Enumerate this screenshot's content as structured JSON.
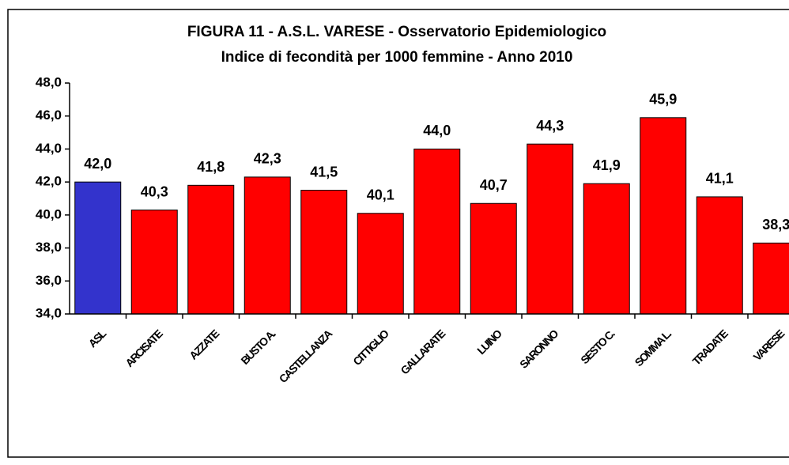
{
  "chart_data": {
    "type": "bar",
    "title": "FIGURA 11 - A.S.L. VARESE - Osservatorio Epidemiologico",
    "subtitle": "Indice di fecondità per 1000 femmine - Anno 2010",
    "categories": [
      "ASL",
      "ARCISATE",
      "AZZATE",
      "BUSTO A.",
      "CASTELLANZA",
      "CITTIGLIO",
      "GALLARATE",
      "LUINO",
      "SARONNO",
      "SESTO C.",
      "SOMMA L.",
      "TRADATE",
      "VARESE"
    ],
    "values": [
      42.0,
      40.3,
      41.8,
      42.3,
      41.5,
      40.1,
      44.0,
      40.7,
      44.3,
      41.9,
      45.9,
      41.1,
      38.3
    ],
    "value_labels": [
      "42,0",
      "40,3",
      "41,8",
      "42,3",
      "41,5",
      "40,1",
      "44,0",
      "40,7",
      "44,3",
      "41,9",
      "45,9",
      "41,1",
      "38,3"
    ],
    "colors": [
      "#3333cc",
      "#ff0000",
      "#ff0000",
      "#ff0000",
      "#ff0000",
      "#ff0000",
      "#ff0000",
      "#ff0000",
      "#ff0000",
      "#ff0000",
      "#ff0000",
      "#ff0000",
      "#ff0000"
    ],
    "ylim": [
      34,
      48
    ],
    "yticks": [
      {
        "value": 34,
        "label": "34,0"
      },
      {
        "value": 36,
        "label": "36,0"
      },
      {
        "value": 38,
        "label": "38,0"
      },
      {
        "value": 40,
        "label": "40,0"
      },
      {
        "value": 42,
        "label": "42,0"
      },
      {
        "value": 44,
        "label": "44,0"
      },
      {
        "value": 46,
        "label": "46,0"
      },
      {
        "value": 48,
        "label": "48,0"
      }
    ]
  }
}
